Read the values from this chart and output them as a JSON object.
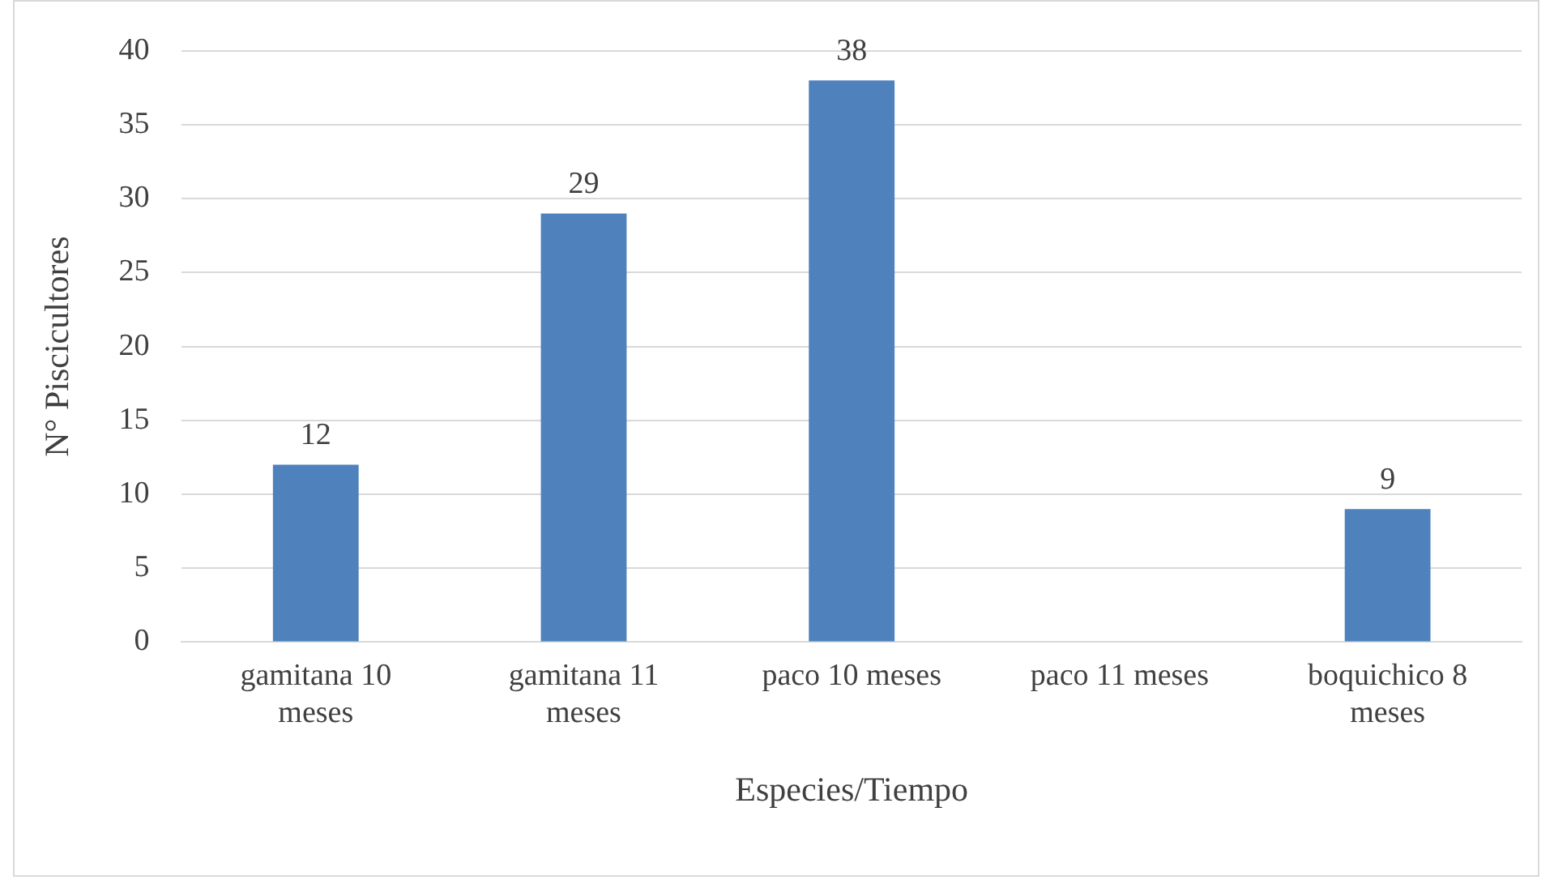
{
  "chart_data": {
    "type": "bar",
    "xlabel": "Especies/Tiempo",
    "ylabel": "N° Piscicultores",
    "categories": [
      "gamitana 10 meses",
      "gamitana 11 meses",
      "paco 10 meses",
      "paco 11 meses",
      "boquichico 8 meses"
    ],
    "values": [
      12,
      29,
      38,
      null,
      9
    ],
    "color": "#4f81bd",
    "data_labels": true,
    "ylim": [
      0,
      40
    ],
    "yticks": [
      0,
      5,
      10,
      15,
      20,
      25,
      30,
      35,
      40
    ],
    "grid": "y"
  }
}
